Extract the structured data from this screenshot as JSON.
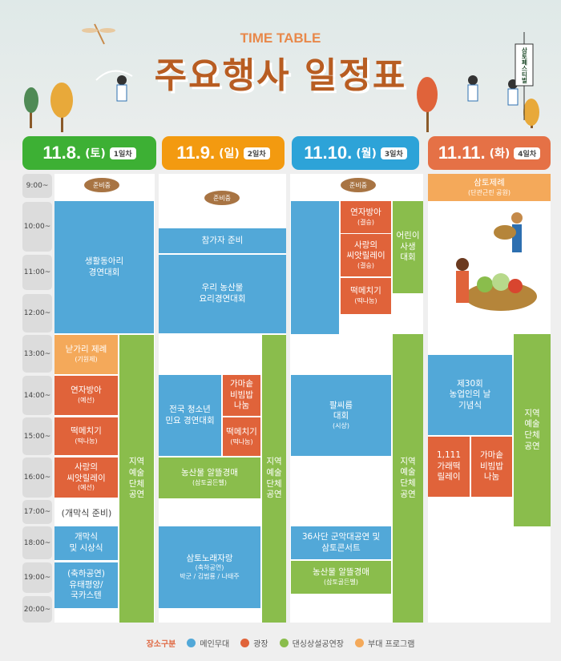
{
  "header": {
    "subtitle": "TIME TABLE",
    "title": "주요행사 일정표",
    "banner_text": "삼토페스티벌"
  },
  "colors": {
    "main_stage": "#52a8d8",
    "plaza": "#e0633a",
    "dansim": "#8abd4c",
    "side": "#f4a95a",
    "pill": "#a87443"
  },
  "days": [
    {
      "date": "11.8.",
      "weekday": "(토)",
      "badge": "1일차",
      "color": "#3db034"
    },
    {
      "date": "11.9.",
      "weekday": "(일)",
      "badge": "2일차",
      "color": "#f39a10"
    },
    {
      "date": "11.10.",
      "weekday": "(월)",
      "badge": "3일차",
      "color": "#2da3d8"
    },
    {
      "date": "11.11.",
      "weekday": "(화)",
      "badge": "4일차",
      "color": "#e57146"
    }
  ],
  "times": [
    "9:00~",
    "10:00~",
    "11:00~",
    "12:00~",
    "13:00~",
    "14:00~",
    "15:00~",
    "16:00~",
    "17:00~",
    "18:00~",
    "19:00~",
    "20:00~"
  ],
  "preparing": "준비중",
  "opening_prep": "(개막식 준비)",
  "events": [
    {
      "day": 1,
      "type": "main_stage",
      "title": "생활동아리\n경연대회",
      "sub": ""
    },
    {
      "day": 1,
      "type": "side",
      "title": "낟가리 제례",
      "sub": "(기원제)"
    },
    {
      "day": 1,
      "type": "plaza",
      "title": "연자방아",
      "sub": "(예선)"
    },
    {
      "day": 1,
      "type": "plaza",
      "title": "떡메치기",
      "sub": "(떡나눔)"
    },
    {
      "day": 1,
      "type": "plaza",
      "title": "사랑의\n씨앗릴레이",
      "sub": "(예선)"
    },
    {
      "day": 1,
      "type": "main_stage",
      "title": "개막식\n및 시상식",
      "sub": ""
    },
    {
      "day": 1,
      "type": "main_stage",
      "title": "(축하공연)\n유태평양/\n국카스텐",
      "sub": ""
    },
    {
      "day": 1,
      "type": "dansim",
      "title": "지역\n예술\n단체\n공연",
      "sub": ""
    },
    {
      "day": 2,
      "type": "main_stage",
      "title": "참가자 준비",
      "sub": ""
    },
    {
      "day": 2,
      "type": "main_stage",
      "title": "우리 농산물\n요리경연대회",
      "sub": ""
    },
    {
      "day": 2,
      "type": "main_stage",
      "title": "전국 청소년\n민요 경연대회",
      "sub": ""
    },
    {
      "day": 2,
      "type": "plaza",
      "title": "가마솥\n비빔밥\n나눔",
      "sub": ""
    },
    {
      "day": 2,
      "type": "plaza",
      "title": "떡메치기",
      "sub": "(떡나눔)"
    },
    {
      "day": 2,
      "type": "dansim",
      "title": "농산물 알뜰경매",
      "sub": "(삼토골든벨)"
    },
    {
      "day": 2,
      "type": "main_stage",
      "title": "삼토노래자랑",
      "sub": "(축하공연)\n박군 / 김범룡 / 나태주"
    },
    {
      "day": 2,
      "type": "dansim",
      "title": "지역\n예술\n단체\n공연",
      "sub": ""
    },
    {
      "day": 3,
      "type": "main_stage",
      "title": "",
      "sub": ""
    },
    {
      "day": 3,
      "type": "plaza",
      "title": "연자방아",
      "sub": "(결승)"
    },
    {
      "day": 3,
      "type": "plaza",
      "title": "사랑의\n씨앗릴레이",
      "sub": "(결승)"
    },
    {
      "day": 3,
      "type": "plaza",
      "title": "떡메치기",
      "sub": "(떡나눔)"
    },
    {
      "day": 3,
      "type": "dansim",
      "title": "어린이\n사생\n대회",
      "sub": ""
    },
    {
      "day": 3,
      "type": "main_stage",
      "title": "팔씨름\n대회",
      "sub": "(시상)"
    },
    {
      "day": 3,
      "type": "main_stage",
      "title": "36사단 군악대공연 및\n삼토콘서트",
      "sub": ""
    },
    {
      "day": 3,
      "type": "dansim",
      "title": "농산물 알뜰경매",
      "sub": "(삼토골든벨)"
    },
    {
      "day": 3,
      "type": "dansim",
      "title": "지역\n예술\n단체\n공연",
      "sub": ""
    },
    {
      "day": 4,
      "type": "side",
      "title": "삼토제례",
      "sub": "(단관근린 공원)"
    },
    {
      "day": 4,
      "type": "main_stage",
      "title": "제30회\n농업인의 날\n기념식",
      "sub": ""
    },
    {
      "day": 4,
      "type": "plaza",
      "title": "1,111\n가래떡\n릴레이",
      "sub": ""
    },
    {
      "day": 4,
      "type": "plaza",
      "title": "가마솥\n비빔밥\n나눔",
      "sub": ""
    },
    {
      "day": 4,
      "type": "dansim",
      "title": "지역\n예술\n단체\n공연",
      "sub": ""
    }
  ],
  "legend": {
    "title": "장소구분",
    "items": [
      {
        "label": "메인무대",
        "color": "#52a8d8"
      },
      {
        "label": "광장",
        "color": "#e0633a"
      },
      {
        "label": "댄싱상설공연장",
        "color": "#8abd4c"
      },
      {
        "label": "부대 프로그램",
        "color": "#f4a95a"
      }
    ]
  }
}
